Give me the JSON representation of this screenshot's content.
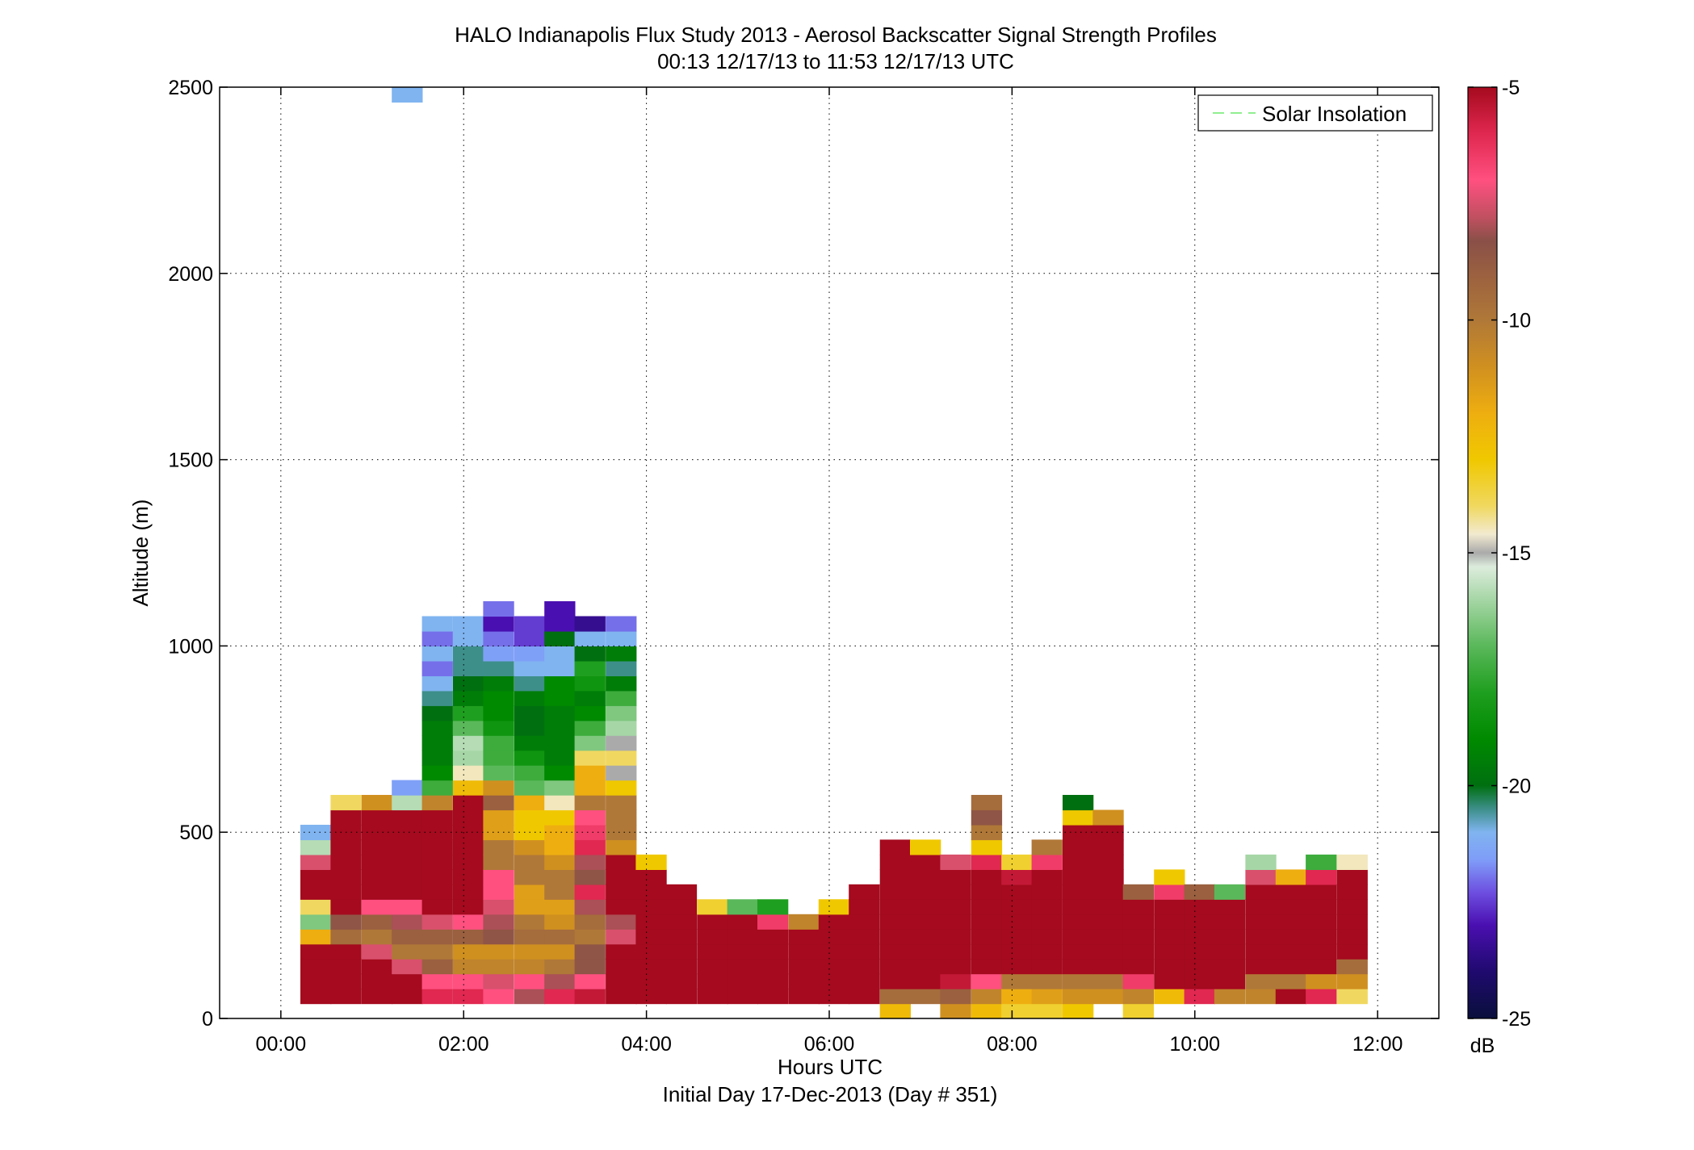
{
  "chart_data": {
    "type": "heatmap",
    "title": "HALO Indianapolis Flux Study 2013 - Aerosol Backscatter Signal Strength Profiles",
    "subtitle": "00:13 12/17/13 to 11:53 12/17/13  UTC",
    "xlabel": "Hours UTC",
    "xlabel2": "Initial Day 17-Dec-2013 (Day # 351)",
    "ylabel": "Altitude (m)",
    "xlim": [
      -0.67,
      12.67
    ],
    "ylim": [
      0,
      2500
    ],
    "x_ticks": [
      {
        "value": 0,
        "label": "00:00"
      },
      {
        "value": 2,
        "label": "02:00"
      },
      {
        "value": 4,
        "label": "04:00"
      },
      {
        "value": 6,
        "label": "06:00"
      },
      {
        "value": 8,
        "label": "08:00"
      },
      {
        "value": 10,
        "label": "10:00"
      },
      {
        "value": 12,
        "label": "12:00"
      }
    ],
    "y_ticks": [
      {
        "value": 0,
        "label": "0"
      },
      {
        "value": 500,
        "label": "500"
      },
      {
        "value": 1000,
        "label": "1000"
      },
      {
        "value": 1500,
        "label": "1500"
      },
      {
        "value": 2000,
        "label": "2000"
      },
      {
        "value": 2500,
        "label": "2500"
      }
    ],
    "grid": true,
    "legend": {
      "placement": "top-right",
      "entries": [
        {
          "name": "Solar Insolation",
          "color": "#90ee90",
          "style": "dashed"
        }
      ]
    },
    "colorbar": {
      "label": "dB",
      "range": [
        -25,
        -5
      ],
      "ticks": [
        {
          "value": -5,
          "label": "-5"
        },
        {
          "value": -10,
          "label": "-10"
        },
        {
          "value": -15,
          "label": "-15"
        },
        {
          "value": -20,
          "label": "-20"
        },
        {
          "value": -25,
          "label": "-25"
        }
      ]
    },
    "cell_width_hours": 0.333,
    "cell_height_m": 40,
    "profiles": [
      {
        "t": 0.38,
        "bottom": 40,
        "values": [
          -5,
          -5,
          -5,
          -5,
          -12,
          -16.5,
          -14,
          -5,
          -5,
          -7.5,
          -15.8,
          -21
        ]
      },
      {
        "t": 0.71,
        "bottom": 40,
        "values": [
          -5,
          -5,
          -5,
          -5,
          -9.5,
          -8.5,
          -5,
          -5,
          -5,
          -5,
          -5,
          -5,
          -5,
          -14
        ]
      },
      {
        "t": 1.05,
        "bottom": 40,
        "values": [
          -5,
          -5,
          -5,
          -7.5,
          -10,
          -9,
          -7,
          -5,
          -5,
          -5,
          -5,
          -5,
          -5,
          -11
        ]
      },
      {
        "t": 1.38,
        "bottom": 40,
        "values": [
          -5,
          -5,
          -7.5,
          -10,
          -9,
          -8,
          -7,
          -5,
          -5,
          -5,
          -5,
          -5,
          -5,
          -15.8,
          -21.5
        ]
      },
      {
        "t": 1.71,
        "bottom": 40,
        "values": [
          -6,
          -7,
          -9,
          -10,
          -9,
          -7.5,
          -5,
          -5,
          -5,
          -5,
          -5,
          -5,
          -5,
          -10.5,
          -17.5,
          -19,
          -19.5,
          -19.5,
          -19.5,
          -20,
          -20.5,
          -21,
          -22,
          -21,
          -22,
          -21
        ]
      },
      {
        "t": 2.05,
        "bottom": 40,
        "values": [
          -6,
          -7,
          -10.5,
          -11,
          -9,
          -7,
          -5,
          -5,
          -5,
          -5,
          -5,
          -5,
          -5,
          -5,
          -12.5,
          -14.5,
          -16,
          -15.8,
          -17,
          -18,
          -19.5,
          -20,
          -20.5,
          -20.5,
          -21,
          -21
        ]
      },
      {
        "t": 2.38,
        "bottom": 40,
        "values": [
          -7,
          -7.5,
          -10.5,
          -11,
          -8.5,
          -8,
          -7.5,
          -7,
          -7,
          -10,
          -10,
          -11.5,
          -11.5,
          -9,
          -11,
          -17,
          -17.5,
          -17.5,
          -18.5,
          -19,
          -19,
          -19.5,
          -20.5,
          -21.5,
          -22,
          -23,
          -22
        ]
      },
      {
        "t": 2.72,
        "bottom": 40,
        "values": [
          -8,
          -7,
          -10.5,
          -11,
          -9.5,
          -10,
          -11.5,
          -11.5,
          -10,
          -10,
          -11,
          -13,
          -13,
          -12,
          -17,
          -17.5,
          -18.5,
          -19.5,
          -20,
          -20,
          -19.5,
          -20.5,
          -21,
          -21.5,
          -22.5,
          -22.5
        ]
      },
      {
        "t": 3.05,
        "bottom": 40,
        "values": [
          -6,
          -8,
          -10,
          -11,
          -9.5,
          -11,
          -11.5,
          -10,
          -10,
          -11,
          -12,
          -12,
          -13,
          -14.5,
          -16.5,
          -19,
          -19.5,
          -19.5,
          -19.5,
          -19.5,
          -19,
          -19,
          -21,
          -21,
          -20,
          -23,
          -23
        ]
      },
      {
        "t": 3.38,
        "bottom": 40,
        "values": [
          -5.5,
          -7,
          -8.5,
          -8.5,
          -10,
          -9.5,
          -8,
          -6,
          -8.5,
          -8,
          -6,
          -6.5,
          -7,
          -10,
          -12,
          -12,
          -14,
          -16.5,
          -17.5,
          -19,
          -19.5,
          -18.5,
          -18,
          -20,
          -21,
          -23.5
        ]
      },
      {
        "t": 3.72,
        "bottom": 40,
        "values": [
          -5,
          -5,
          -5,
          -5,
          -7.5,
          -8,
          -5,
          -5,
          -5,
          -5,
          -11,
          -10,
          -10,
          -10,
          -13,
          -15,
          -14,
          -15,
          -16,
          -16.5,
          -17.5,
          -19.5,
          -20.5,
          -19.5,
          -21,
          -22
        ]
      },
      {
        "t": 4.05,
        "bottom": 40,
        "values": [
          -5,
          -5,
          -5,
          -5,
          -5,
          -5,
          -5,
          -5,
          -5,
          -13
        ]
      },
      {
        "t": 4.38,
        "bottom": 40,
        "values": [
          -5,
          -5,
          -5,
          -5,
          -5,
          -5,
          -5,
          -5
        ]
      },
      {
        "t": 4.72,
        "bottom": 40,
        "values": [
          -5,
          -5,
          -5,
          -5,
          -5,
          -5,
          -13.5
        ]
      },
      {
        "t": 5.05,
        "bottom": 40,
        "values": [
          -5,
          -5,
          -5,
          -5,
          -5,
          -5,
          -17
        ]
      },
      {
        "t": 5.38,
        "bottom": 40,
        "values": [
          -5,
          -5,
          -5,
          -5,
          -5,
          -6.5,
          -18
        ]
      },
      {
        "t": 5.72,
        "bottom": 40,
        "values": [
          -5,
          -5,
          -5,
          -5,
          -5,
          -10.5
        ]
      },
      {
        "t": 6.05,
        "bottom": 40,
        "values": [
          -5,
          -5,
          -5,
          -5,
          -5,
          -5,
          -13
        ]
      },
      {
        "t": 6.38,
        "bottom": 40,
        "values": [
          -5,
          -5,
          -5,
          -5,
          -5,
          -5,
          -5,
          -5
        ]
      },
      {
        "t": 6.72,
        "bottom": 0,
        "values": [
          -12.5,
          -9.5,
          -5,
          -5,
          -5,
          -5,
          -5,
          -5,
          -5,
          -5,
          -5,
          -5
        ]
      },
      {
        "t": 7.05,
        "bottom": 40,
        "values": [
          -9.5,
          -5,
          -5,
          -5,
          -5,
          -5,
          -5,
          -5,
          -5,
          -5,
          -13
        ]
      },
      {
        "t": 7.38,
        "bottom": 0,
        "values": [
          -11,
          -9,
          -5.5,
          -5,
          -5,
          -5,
          -5,
          -5,
          -5,
          -5,
          -7.5
        ]
      },
      {
        "t": 7.72,
        "bottom": 0,
        "values": [
          -12.5,
          -10.5,
          -7,
          -5,
          -5,
          -5,
          -5,
          -5,
          -5,
          -5,
          -6,
          -13,
          -10,
          -8.5,
          -9.5
        ]
      },
      {
        "t": 8.05,
        "bottom": 0,
        "values": [
          -13.5,
          -12,
          -10,
          -5,
          -5,
          -5,
          -5,
          -5,
          -5,
          -5.5,
          -13.5
        ]
      },
      {
        "t": 8.38,
        "bottom": 0,
        "values": [
          -13.5,
          -11.5,
          -10,
          -5,
          -5,
          -5,
          -5,
          -5,
          -5,
          -5,
          -6.5,
          -10
        ]
      },
      {
        "t": 8.72,
        "bottom": 0,
        "values": [
          -13,
          -11,
          -10,
          -5,
          -5,
          -5,
          -5,
          -5,
          -5,
          -5,
          -5,
          -5,
          -5,
          -13,
          -20
        ]
      },
      {
        "t": 9.05,
        "bottom": 40,
        "values": [
          -11,
          -10,
          -5,
          -5,
          -5,
          -5,
          -5,
          -5,
          -5,
          -5,
          -5,
          -5,
          -11
        ]
      },
      {
        "t": 9.38,
        "bottom": 0,
        "values": [
          -13.5,
          -10.5,
          -6.5,
          -5,
          -5,
          -5,
          -5,
          -5,
          -9
        ]
      },
      {
        "t": 9.72,
        "bottom": 40,
        "values": [
          -12.5,
          -5,
          -5,
          -5,
          -5,
          -5,
          -5,
          -6.5,
          -13
        ]
      },
      {
        "t": 10.05,
        "bottom": 40,
        "values": [
          -6,
          -5,
          -5,
          -5,
          -5,
          -5,
          -5,
          -9
        ]
      },
      {
        "t": 10.38,
        "bottom": 40,
        "values": [
          -10.5,
          -5,
          -5,
          -5,
          -5,
          -5,
          -5,
          -17
        ]
      },
      {
        "t": 10.72,
        "bottom": 40,
        "values": [
          -10.5,
          -10,
          -5,
          -5,
          -5,
          -5,
          -5,
          -5,
          -7.5,
          -16
        ]
      },
      {
        "t": 11.05,
        "bottom": 40,
        "values": [
          -5,
          -10,
          -5,
          -5,
          -5,
          -5,
          -5,
          -5,
          -12
        ]
      },
      {
        "t": 11.38,
        "bottom": 40,
        "values": [
          -6,
          -11,
          -5,
          -5,
          -5,
          -5,
          -5,
          -5,
          -6,
          -17.5
        ]
      },
      {
        "t": 11.72,
        "bottom": 40,
        "values": [
          -14,
          -11,
          -9.5,
          -5,
          -5,
          -5,
          -5,
          -5,
          -5,
          -14.5
        ]
      }
    ],
    "outliers": [
      {
        "t": 1.38,
        "bottom": 2460,
        "value": -21
      }
    ]
  }
}
